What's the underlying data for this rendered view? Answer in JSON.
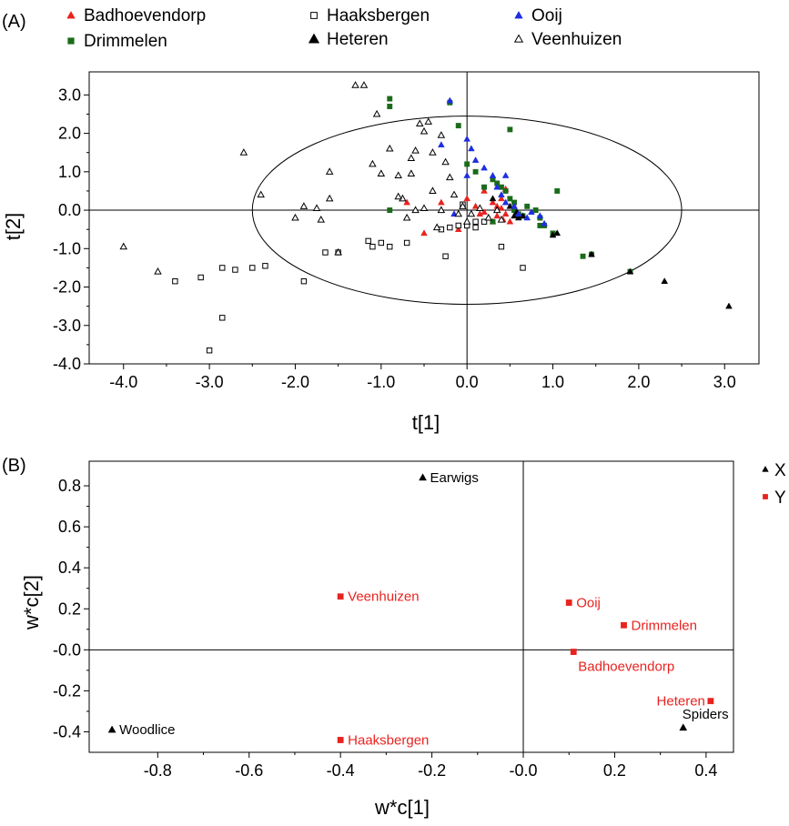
{
  "chart_data": [
    {
      "type": "scatter",
      "panel_label": "(A)",
      "xlabel": "t[1]",
      "ylabel": "t[2]",
      "xlim": [
        -4.4,
        3.4
      ],
      "ylim": [
        -4.0,
        3.6
      ],
      "xticks": [
        -4.0,
        -3.0,
        -2.0,
        -1.0,
        0.0,
        1.0,
        2.0,
        3.0
      ],
      "yticks": [
        -4.0,
        -3.0,
        -2.0,
        -1.0,
        0.0,
        1.0,
        2.0,
        3.0
      ],
      "tick_labels_x": [
        "-4.0",
        "-3.0",
        "-2.0",
        "-1.0",
        "0.0",
        "1.0",
        "2.0",
        "3.0"
      ],
      "tick_labels_y": [
        "-4.0",
        "-3.0",
        "-2.0",
        "-1.0",
        "0.0",
        "1.0",
        "2.0",
        "3.0"
      ],
      "ellipse": {
        "rx": 2.5,
        "ry": 2.45
      },
      "legend_placement": "top",
      "series": [
        {
          "name": "Badhoevendorp",
          "marker": "triangle-filled",
          "color": "#e8231f",
          "points": [
            [
              -0.7,
              0.2
            ],
            [
              -0.5,
              -0.6
            ],
            [
              -0.3,
              0.2
            ],
            [
              -0.1,
              -0.5
            ],
            [
              0.0,
              0.3
            ],
            [
              0.1,
              0.1
            ],
            [
              0.2,
              0.5
            ],
            [
              0.25,
              -0.2
            ],
            [
              0.3,
              0.2
            ],
            [
              0.35,
              0.1
            ],
            [
              0.4,
              0.3
            ],
            [
              0.45,
              -0.1
            ],
            [
              0.5,
              -0.3
            ],
            [
              0.15,
              -0.1
            ],
            [
              0.3,
              -0.3
            ],
            [
              0.45,
              0.55
            ],
            [
              0.2,
              -0.05
            ],
            [
              0.4,
              0.05
            ],
            [
              0.35,
              -0.15
            ],
            [
              0.55,
              0.1
            ],
            [
              0.42,
              -0.25
            ]
          ]
        },
        {
          "name": "Drimmelen",
          "marker": "square-filled",
          "color": "#1a6b1a",
          "points": [
            [
              -0.9,
              2.9
            ],
            [
              -0.9,
              2.7
            ],
            [
              -0.2,
              2.8
            ],
            [
              -0.1,
              2.2
            ],
            [
              0.5,
              2.1
            ],
            [
              0.0,
              1.2
            ],
            [
              0.1,
              1.0
            ],
            [
              0.3,
              0.8
            ],
            [
              0.35,
              0.7
            ],
            [
              0.4,
              0.6
            ],
            [
              0.45,
              0.5
            ],
            [
              0.5,
              0.3
            ],
            [
              0.55,
              0.2
            ],
            [
              0.55,
              0.0
            ],
            [
              0.6,
              -0.1
            ],
            [
              0.7,
              0.1
            ],
            [
              0.8,
              0.0
            ],
            [
              0.85,
              -0.2
            ],
            [
              0.9,
              -0.4
            ],
            [
              1.0,
              -0.6
            ],
            [
              1.05,
              0.5
            ],
            [
              1.35,
              -1.2
            ],
            [
              1.45,
              -1.15
            ],
            [
              1.9,
              -1.6
            ],
            [
              -0.9,
              0.0
            ],
            [
              0.2,
              0.6
            ],
            [
              0.3,
              -0.3
            ],
            [
              0.65,
              -0.15
            ],
            [
              0.85,
              -0.4
            ]
          ]
        },
        {
          "name": "Haaksbergen",
          "marker": "square-open",
          "color": "#000000",
          "points": [
            [
              -3.4,
              -1.85
            ],
            [
              -3.1,
              -1.75
            ],
            [
              -3.0,
              -3.65
            ],
            [
              -2.85,
              -1.5
            ],
            [
              -2.85,
              -2.8
            ],
            [
              -2.7,
              -1.55
            ],
            [
              -2.5,
              -1.5
            ],
            [
              -2.35,
              -1.45
            ],
            [
              -1.9,
              -1.85
            ],
            [
              -1.65,
              -1.1
            ],
            [
              -1.5,
              -1.1
            ],
            [
              -1.15,
              -0.8
            ],
            [
              -1.1,
              -0.95
            ],
            [
              -1.0,
              -0.85
            ],
            [
              -0.9,
              -0.95
            ],
            [
              -0.7,
              -0.85
            ],
            [
              -0.3,
              -0.5
            ],
            [
              -0.2,
              -0.45
            ],
            [
              -0.25,
              -1.2
            ],
            [
              -0.1,
              -0.4
            ],
            [
              0.0,
              -0.4
            ],
            [
              0.1,
              -0.3
            ],
            [
              0.2,
              -0.3
            ],
            [
              0.4,
              -0.95
            ],
            [
              0.65,
              -1.5
            ],
            [
              0.1,
              -0.45
            ],
            [
              -0.05,
              0.15
            ]
          ]
        },
        {
          "name": "Heteren",
          "marker": "triangle-filled",
          "color": "#000000",
          "points": [
            [
              0.55,
              -0.15
            ],
            [
              0.6,
              -0.2
            ],
            [
              0.65,
              -0.15
            ],
            [
              1.0,
              -0.65
            ],
            [
              1.05,
              -0.6
            ],
            [
              1.45,
              -1.15
            ],
            [
              1.9,
              -1.6
            ],
            [
              2.3,
              -1.85
            ],
            [
              3.05,
              -2.5
            ],
            [
              0.3,
              0.3
            ],
            [
              0.5,
              0.1
            ],
            [
              0.58,
              -0.05
            ]
          ]
        },
        {
          "name": "Ooij",
          "marker": "triangle-filled",
          "color": "#1e2ee0",
          "points": [
            [
              -0.3,
              1.7
            ],
            [
              -0.2,
              2.85
            ],
            [
              0.0,
              1.85
            ],
            [
              0.05,
              1.6
            ],
            [
              0.1,
              1.3
            ],
            [
              0.2,
              1.1
            ],
            [
              0.3,
              0.9
            ],
            [
              0.35,
              0.6
            ],
            [
              0.4,
              0.4
            ],
            [
              0.45,
              0.2
            ],
            [
              0.55,
              0.1
            ],
            [
              0.6,
              -0.1
            ],
            [
              0.7,
              -0.2
            ],
            [
              0.75,
              -0.05
            ],
            [
              0.85,
              -0.15
            ],
            [
              0.9,
              -0.35
            ],
            [
              -0.15,
              -0.1
            ],
            [
              0.0,
              0.9
            ],
            [
              0.45,
              0.9
            ]
          ]
        },
        {
          "name": "Veenhuizen",
          "marker": "triangle-open",
          "color": "#000000",
          "points": [
            [
              -4.0,
              -0.95
            ],
            [
              -3.6,
              -1.6
            ],
            [
              -2.6,
              1.5
            ],
            [
              -2.4,
              0.4
            ],
            [
              -2.0,
              -0.2
            ],
            [
              -1.9,
              0.1
            ],
            [
              -1.7,
              -0.25
            ],
            [
              -1.6,
              0.3
            ],
            [
              -1.6,
              1.0
            ],
            [
              -1.5,
              -1.1
            ],
            [
              -1.3,
              3.25
            ],
            [
              -1.2,
              3.25
            ],
            [
              -1.1,
              1.2
            ],
            [
              -1.05,
              2.5
            ],
            [
              -0.9,
              1.6
            ],
            [
              -0.8,
              0.9
            ],
            [
              -0.75,
              0.3
            ],
            [
              -0.7,
              -0.2
            ],
            [
              -0.6,
              0.0
            ],
            [
              -0.65,
              1.35
            ],
            [
              -0.6,
              1.55
            ],
            [
              -0.5,
              2.05
            ],
            [
              -0.55,
              2.25
            ],
            [
              -0.4,
              1.5
            ],
            [
              -0.4,
              0.5
            ],
            [
              -0.35,
              -0.45
            ],
            [
              -0.3,
              0.0
            ],
            [
              -0.25,
              1.25
            ],
            [
              -0.2,
              0.85
            ],
            [
              -0.15,
              0.4
            ],
            [
              -0.1,
              -0.1
            ],
            [
              -0.05,
              0.1
            ],
            [
              0.0,
              -0.3
            ],
            [
              0.05,
              -0.1
            ],
            [
              0.15,
              0.05
            ],
            [
              0.25,
              -0.2
            ],
            [
              0.35,
              0.0
            ],
            [
              0.4,
              -0.25
            ],
            [
              -0.45,
              2.3
            ],
            [
              -0.5,
              0.05
            ],
            [
              -0.8,
              0.35
            ],
            [
              -1.75,
              0.05
            ],
            [
              -0.65,
              0.95
            ],
            [
              -0.3,
              1.95
            ],
            [
              -1.0,
              0.95
            ]
          ]
        }
      ]
    },
    {
      "type": "scatter",
      "panel_label": "(B)",
      "xlabel": "w*c[1]",
      "ylabel": "w*c[2]",
      "xlim": [
        -0.95,
        0.46
      ],
      "ylim": [
        -0.5,
        0.92
      ],
      "xticks": [
        -0.8,
        -0.6,
        -0.4,
        -0.2,
        0.0,
        0.2,
        0.4
      ],
      "yticks": [
        -0.4,
        -0.2,
        0.0,
        0.2,
        0.4,
        0.6,
        0.8
      ],
      "tick_labels_x": [
        "-0.8",
        "-0.6",
        "-0.4",
        "-0.2",
        "-0.0",
        "0.2",
        "0.4"
      ],
      "tick_labels_y": [
        "-0.4",
        "-0.2",
        "-0.0",
        "0.2",
        "0.4",
        "0.6",
        "0.8"
      ],
      "legend_placement": "right",
      "series": [
        {
          "name": "X",
          "marker": "triangle-filled",
          "color": "#000000",
          "points": [
            {
              "x": -0.22,
              "y": 0.84,
              "label": "Earwigs"
            },
            {
              "x": -0.9,
              "y": -0.39,
              "label": "Woodlice"
            },
            {
              "x": 0.35,
              "y": -0.38,
              "label": "Spiders"
            }
          ]
        },
        {
          "name": "Y",
          "marker": "square-filled",
          "color": "#e8231f",
          "points": [
            {
              "x": -0.4,
              "y": 0.26,
              "label": "Veenhuizen"
            },
            {
              "x": -0.4,
              "y": -0.44,
              "label": "Haaksbergen"
            },
            {
              "x": 0.1,
              "y": 0.23,
              "label": "Ooij"
            },
            {
              "x": 0.22,
              "y": 0.12,
              "label": "Drimmelen"
            },
            {
              "x": 0.11,
              "y": -0.01,
              "label": "Badhoevendorp"
            },
            {
              "x": 0.41,
              "y": -0.25,
              "label": "Heteren"
            }
          ]
        }
      ]
    }
  ]
}
